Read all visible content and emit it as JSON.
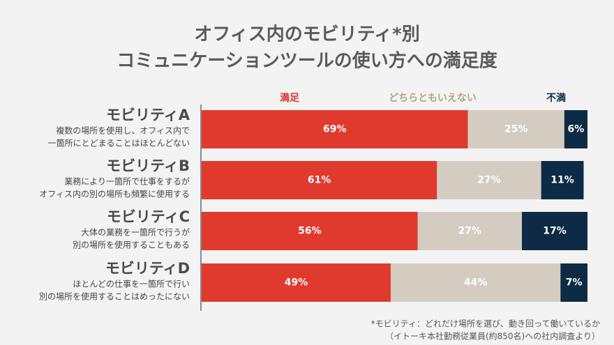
{
  "chart_data": {
    "type": "stacked-bar-horizontal",
    "title": [
      "オフィス内のモビリティ*別",
      "コミュニケーションツールの使い方への満足度"
    ],
    "categories": [
      "モビリティA",
      "モビリティB",
      "モビリティC",
      "モビリティD"
    ],
    "descriptions": [
      [
        "複数の場所を使用し、オフィス内で",
        "一箇所にとどまることはほとんどない"
      ],
      [
        "業務により一箇所で仕事をするが",
        "オフィス内の別の場所も頻繁に使用する"
      ],
      [
        "大体の業務を一箇所で行うが",
        "別の場所を使用することもある"
      ],
      [
        "ほとんどの仕事を一箇所で行い",
        "別の場所を使用することはめったにない"
      ]
    ],
    "series": [
      {
        "name": "満足",
        "color": "#e03a2f",
        "label_color": "#d9342a",
        "values": [
          69,
          61,
          56,
          49
        ],
        "value_labels": [
          "69%",
          "61%",
          "56%",
          "49%"
        ]
      },
      {
        "name": "どちらともいえない",
        "color": "#d4ccc1",
        "label_color": "#b3a57c",
        "values": [
          25,
          27,
          27,
          44
        ],
        "value_labels": [
          "25%",
          "27%",
          "27%",
          "44%"
        ]
      },
      {
        "name": "不満",
        "color": "#0d2b45",
        "label_color": "#0d2b45",
        "values": [
          6,
          11,
          17,
          7
        ],
        "value_labels": [
          "6%",
          "11%",
          "17%",
          "7%"
        ]
      }
    ],
    "xlim": [
      0,
      100
    ],
    "footnote": [
      "*モビリティ：どれだけ場所を選び、動き回って働いているか",
      "（イトーキ本社勤務従業員(約850名)への社内調査より）"
    ]
  }
}
